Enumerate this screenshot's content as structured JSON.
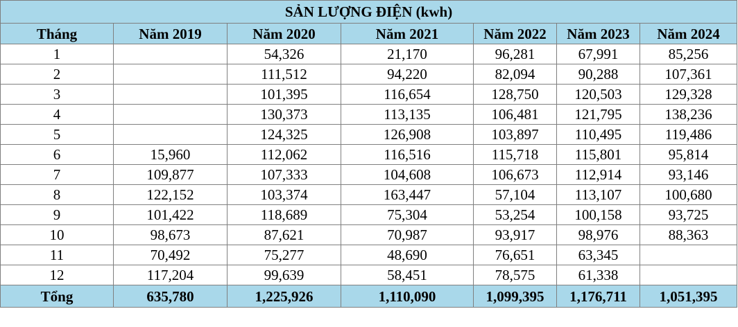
{
  "title": "SẢN LƯỢNG ĐIỆN (kwh)",
  "headers": [
    "Tháng",
    "Năm 2019",
    "Năm 2020",
    "Năm 2021",
    "Năm 2022",
    "Năm 2023",
    "Năm 2024"
  ],
  "rows": [
    [
      "1",
      "",
      "54,326",
      "21,170",
      "96,281",
      "67,991",
      "85,256"
    ],
    [
      "2",
      "",
      "111,512",
      "94,220",
      "82,094",
      "90,288",
      "107,361"
    ],
    [
      "3",
      "",
      "101,395",
      "116,654",
      "128,750",
      "120,503",
      "129,328"
    ],
    [
      "4",
      "",
      "130,373",
      "113,135",
      "106,481",
      "121,795",
      "138,236"
    ],
    [
      "5",
      "",
      "124,325",
      "126,908",
      "103,897",
      "110,495",
      "119,486"
    ],
    [
      "6",
      "15,960",
      "112,062",
      "116,516",
      "115,718",
      "115,801",
      "95,814"
    ],
    [
      "7",
      "109,877",
      "107,333",
      "104,608",
      "106,673",
      "112,914",
      "93,146"
    ],
    [
      "8",
      "122,152",
      "103,374",
      "163,447",
      "57,104",
      "113,107",
      "100,680"
    ],
    [
      "9",
      "101,422",
      "118,689",
      "75,304",
      "53,254",
      "100,158",
      "93,725"
    ],
    [
      "10",
      "98,673",
      "87,621",
      "70,987",
      "93,917",
      "98,976",
      "88,363"
    ],
    [
      "11",
      "70,492",
      "75,277",
      "48,690",
      "76,651",
      "63,345",
      ""
    ],
    [
      "12",
      "117,204",
      "99,639",
      "58,451",
      "78,575",
      "61,338",
      ""
    ]
  ],
  "total": [
    "Tổng",
    "635,780",
    "1,225,926",
    "1,110,090",
    "1,099,395",
    "1,176,711",
    "1,051,395"
  ],
  "colors": {
    "header_fill": "#a9d8ea",
    "grid": "#7f7f7f"
  }
}
